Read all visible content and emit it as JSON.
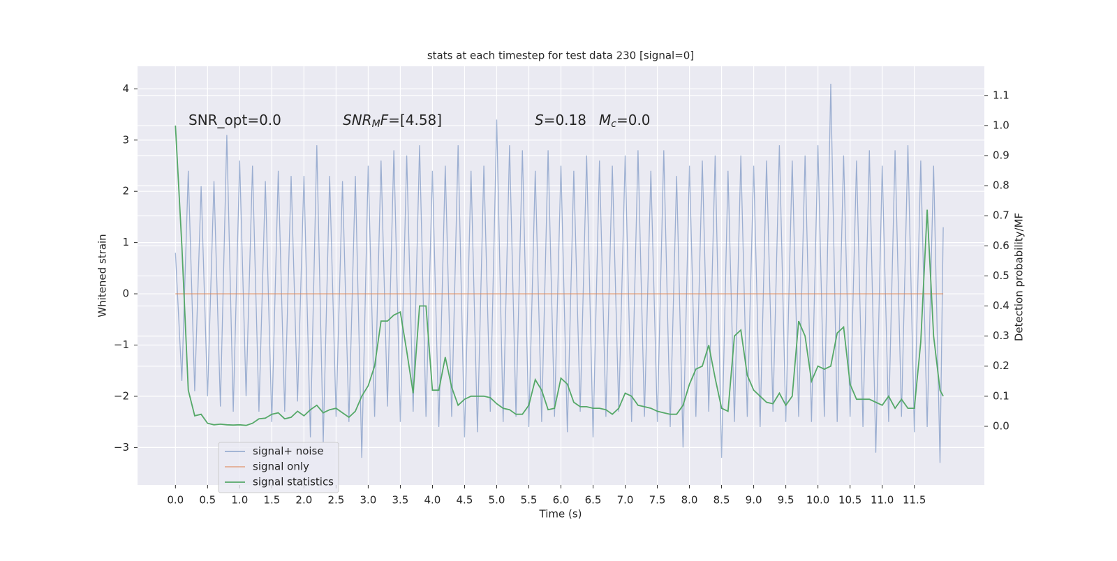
{
  "chart_data": {
    "type": "line",
    "title": "stats at each timestep for test data 230 [signal=0]",
    "xlabel": "Time (s)",
    "ylabel": "Whitened strain",
    "y2label": "Detection probability/MF",
    "grid": true,
    "legend": "lower left",
    "xlim": [
      -0.59,
      12.59
    ],
    "ylim": [
      -3.73,
      4.44
    ],
    "y2lim": [
      -0.195,
      1.197
    ],
    "xticks": [
      {
        "value": 0,
        "label": "0.0"
      },
      {
        "value": 0.5,
        "label": "0.5"
      },
      {
        "value": 1,
        "label": "1.0"
      },
      {
        "value": 1.5,
        "label": "1.5"
      },
      {
        "value": 2,
        "label": "2.0"
      },
      {
        "value": 2.5,
        "label": "2.5"
      },
      {
        "value": 3,
        "label": "3.0"
      },
      {
        "value": 3.5,
        "label": "3.5"
      },
      {
        "value": 4,
        "label": "4.0"
      },
      {
        "value": 4.5,
        "label": "4.5"
      },
      {
        "value": 5,
        "label": "5.0"
      },
      {
        "value": 5.5,
        "label": "5.5"
      },
      {
        "value": 6,
        "label": "6.0"
      },
      {
        "value": 6.5,
        "label": "6.5"
      },
      {
        "value": 7,
        "label": "7.0"
      },
      {
        "value": 7.5,
        "label": "7.5"
      },
      {
        "value": 8,
        "label": "8.0"
      },
      {
        "value": 8.5,
        "label": "8.5"
      },
      {
        "value": 9,
        "label": "9.0"
      },
      {
        "value": 9.5,
        "label": "9.5"
      },
      {
        "value": 10,
        "label": "10.0"
      },
      {
        "value": 10.5,
        "label": "10.5"
      },
      {
        "value": 11,
        "label": "11.0"
      },
      {
        "value": 11.5,
        "label": "11.5"
      }
    ],
    "yticks": [
      {
        "value": -3,
        "label": "−3"
      },
      {
        "value": -2,
        "label": "−2"
      },
      {
        "value": -1,
        "label": "−1"
      },
      0,
      1,
      2,
      3,
      4
    ],
    "y2ticks": [
      {
        "value": 0,
        "label": "0.0"
      },
      {
        "value": 0.1,
        "label": "0.1"
      },
      {
        "value": 0.2,
        "label": "0.2"
      },
      {
        "value": 0.3,
        "label": "0.3"
      },
      {
        "value": 0.4,
        "label": "0.4"
      },
      {
        "value": 0.5,
        "label": "0.5"
      },
      {
        "value": 0.6,
        "label": "0.6"
      },
      {
        "value": 0.7,
        "label": "0.7"
      },
      {
        "value": 0.8,
        "label": "0.8"
      },
      {
        "value": 0.9,
        "label": "0.9"
      },
      {
        "value": 1,
        "label": "1.0"
      },
      {
        "value": 1.1,
        "label": "1.1"
      }
    ],
    "annotations": [
      [
        {
          "text": "SNR_opt=0.0",
          "style": "normal"
        }
      ],
      [
        {
          "text": "SNR",
          "style": "italic"
        },
        {
          "text": "M",
          "style": "sub"
        },
        {
          "text": "F",
          "style": "italic"
        },
        {
          "text": "=[4.58]",
          "style": "normal"
        }
      ],
      [
        {
          "text": "S",
          "style": "italic"
        },
        {
          "text": "=0.18",
          "style": "normal"
        }
      ],
      [
        {
          "text": "M",
          "style": "italic"
        },
        {
          "text": "c",
          "style": "sub"
        },
        {
          "text": "=0.0",
          "style": "normal"
        }
      ]
    ],
    "series": [
      {
        "name": "signal+ noise",
        "color": "#4c72b0",
        "axis": "y",
        "x": [
          0,
          0.1,
          0.2,
          0.3,
          0.4,
          0.5,
          0.6,
          0.7,
          0.8,
          0.9,
          1,
          1.1,
          1.2,
          1.3,
          1.4,
          1.5,
          1.6,
          1.7,
          1.8,
          1.9,
          2,
          2.1,
          2.2,
          2.3,
          2.4,
          2.5,
          2.6,
          2.7,
          2.8,
          2.9,
          3,
          3.1,
          3.2,
          3.3,
          3.4,
          3.5,
          3.6,
          3.7,
          3.8,
          3.9,
          4,
          4.1,
          4.2,
          4.3,
          4.4,
          4.5,
          4.6,
          4.7,
          4.8,
          4.9,
          5,
          5.1,
          5.2,
          5.3,
          5.4,
          5.5,
          5.6,
          5.7,
          5.8,
          5.9,
          6,
          6.1,
          6.2,
          6.3,
          6.4,
          6.5,
          6.6,
          6.7,
          6.8,
          6.9,
          7,
          7.1,
          7.2,
          7.3,
          7.4,
          7.5,
          7.6,
          7.7,
          7.8,
          7.9,
          8,
          8.1,
          8.2,
          8.3,
          8.4,
          8.5,
          8.6,
          8.7,
          8.8,
          8.9,
          9,
          9.1,
          9.2,
          9.3,
          9.4,
          9.5,
          9.6,
          9.7,
          9.8,
          9.9,
          10,
          10.1,
          10.2,
          10.3,
          10.4,
          10.5,
          10.6,
          10.7,
          10.8,
          10.9,
          11,
          11.1,
          11.2,
          11.3,
          11.4,
          11.5,
          11.6,
          11.7,
          11.8,
          11.9,
          11.95
        ],
        "values": [
          0.8,
          -1.7,
          2.4,
          -1.9,
          2.1,
          -2.0,
          2.2,
          -2.2,
          3.1,
          -2.3,
          2.6,
          -2.0,
          2.5,
          -2.3,
          2.2,
          -2.5,
          2.4,
          -2.3,
          2.3,
          -2.1,
          2.3,
          -2.8,
          2.9,
          -2.9,
          2.3,
          -2.4,
          2.2,
          -2.5,
          2.3,
          -3.2,
          2.5,
          -2.4,
          2.6,
          -2.2,
          2.8,
          -2.5,
          2.7,
          -2.3,
          2.9,
          -2.4,
          2.4,
          -2.6,
          2.5,
          -2.4,
          2.9,
          -2.8,
          2.4,
          -2.7,
          2.5,
          -2.3,
          3.4,
          -2.5,
          2.9,
          -2.4,
          2.8,
          -2.6,
          2.4,
          -2.5,
          2.8,
          -2.4,
          2.5,
          -2.7,
          2.4,
          -2.3,
          2.7,
          -2.8,
          2.6,
          -2.4,
          2.5,
          -2.3,
          2.7,
          -2.5,
          2.8,
          -2.4,
          2.4,
          -2.5,
          2.8,
          -2.6,
          2.3,
          -3.0,
          2.5,
          -2.4,
          2.6,
          -2.3,
          2.7,
          -3.2,
          2.4,
          -2.5,
          2.7,
          -2.4,
          2.5,
          -2.6,
          2.6,
          -2.3,
          2.9,
          -2.5,
          2.6,
          -2.4,
          2.7,
          -2.5,
          2.9,
          -2.4,
          4.1,
          -2.5,
          2.7,
          -2.4,
          2.6,
          -2.6,
          2.8,
          -3.1,
          2.5,
          -2.5,
          2.8,
          -2.4,
          2.9,
          -2.7,
          2.6,
          -2.6,
          2.5,
          -3.3,
          1.3
        ]
      },
      {
        "name": "signal only",
        "color": "#dd8452",
        "axis": "y",
        "x": [
          0,
          11.95
        ],
        "values": [
          0,
          0
        ]
      },
      {
        "name": "signal statistics",
        "color": "#55a868",
        "axis": "y2",
        "x": [
          0,
          0.1,
          0.2,
          0.3,
          0.4,
          0.5,
          0.6,
          0.7,
          0.8,
          0.9,
          1,
          1.1,
          1.2,
          1.3,
          1.4,
          1.5,
          1.6,
          1.7,
          1.8,
          1.9,
          2,
          2.1,
          2.2,
          2.3,
          2.4,
          2.5,
          2.6,
          2.7,
          2.8,
          2.9,
          3,
          3.1,
          3.2,
          3.3,
          3.4,
          3.5,
          3.6,
          3.7,
          3.8,
          3.9,
          4,
          4.1,
          4.2,
          4.3,
          4.4,
          4.5,
          4.6,
          4.7,
          4.8,
          4.9,
          5,
          5.1,
          5.2,
          5.3,
          5.4,
          5.5,
          5.6,
          5.7,
          5.8,
          5.9,
          6,
          6.1,
          6.2,
          6.3,
          6.4,
          6.5,
          6.6,
          6.7,
          6.8,
          6.9,
          7,
          7.1,
          7.2,
          7.3,
          7.4,
          7.5,
          7.6,
          7.7,
          7.8,
          7.9,
          8,
          8.1,
          8.2,
          8.3,
          8.4,
          8.5,
          8.6,
          8.7,
          8.8,
          8.9,
          9,
          9.1,
          9.2,
          9.3,
          9.4,
          9.5,
          9.6,
          9.7,
          9.8,
          9.9,
          10,
          10.1,
          10.2,
          10.3,
          10.4,
          10.5,
          10.6,
          10.7,
          10.8,
          10.9,
          11,
          11.1,
          11.2,
          11.3,
          11.4,
          11.5,
          11.6,
          11.7,
          11.8,
          11.9,
          11.95
        ],
        "values": [
          1.0,
          0.6,
          0.12,
          0.035,
          0.04,
          0.01,
          0.005,
          0.007,
          0.005,
          0.004,
          0.005,
          0.003,
          0.01,
          0.025,
          0.027,
          0.04,
          0.045,
          0.025,
          0.03,
          0.05,
          0.035,
          0.055,
          0.07,
          0.045,
          0.055,
          0.06,
          0.045,
          0.03,
          0.05,
          0.1,
          0.135,
          0.2,
          0.35,
          0.35,
          0.37,
          0.38,
          0.25,
          0.11,
          0.4,
          0.4,
          0.12,
          0.12,
          0.23,
          0.13,
          0.07,
          0.09,
          0.1,
          0.1,
          0.1,
          0.095,
          0.075,
          0.06,
          0.055,
          0.04,
          0.04,
          0.07,
          0.155,
          0.12,
          0.055,
          0.06,
          0.16,
          0.14,
          0.08,
          0.065,
          0.065,
          0.06,
          0.06,
          0.055,
          0.04,
          0.06,
          0.11,
          0.1,
          0.07,
          0.065,
          0.06,
          0.05,
          0.045,
          0.04,
          0.04,
          0.07,
          0.14,
          0.19,
          0.2,
          0.27,
          0.16,
          0.06,
          0.05,
          0.3,
          0.32,
          0.17,
          0.12,
          0.1,
          0.08,
          0.075,
          0.11,
          0.07,
          0.1,
          0.35,
          0.3,
          0.15,
          0.2,
          0.19,
          0.2,
          0.31,
          0.33,
          0.14,
          0.09,
          0.09,
          0.09,
          0.08,
          0.07,
          0.1,
          0.06,
          0.09,
          0.06,
          0.06,
          0.28,
          0.72,
          0.3,
          0.12,
          0.1
        ]
      }
    ]
  }
}
